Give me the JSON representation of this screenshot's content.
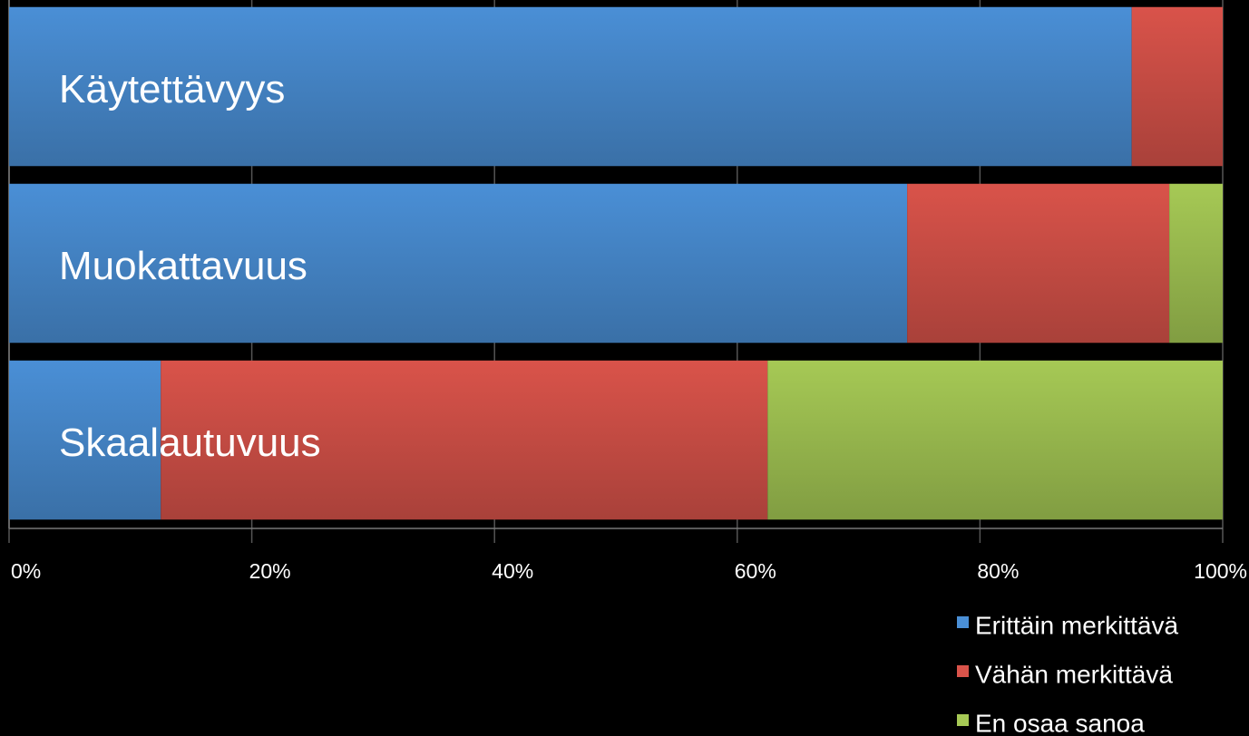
{
  "chart_data": {
    "type": "stacked-bar-horizontal",
    "categories": [
      "Käytettävyys",
      "Muokattavuus",
      "Skaalautuvuus"
    ],
    "series": [
      {
        "name": "Erittäin merkittävä",
        "color": "#4a8fd6",
        "values": [
          92.5,
          74,
          12.5
        ]
      },
      {
        "name": "Vähän merkittävä",
        "color": "#d9534a",
        "values": [
          7.5,
          21.6,
          50
        ]
      },
      {
        "name": "En osaa sanoa",
        "color": "#a6c955",
        "values": [
          0,
          4.4,
          37.5
        ]
      }
    ],
    "xlim": [
      0,
      100
    ],
    "xticks": [
      {
        "value": 0,
        "label": "0%"
      },
      {
        "value": 20,
        "label": "20%"
      },
      {
        "value": 40,
        "label": "40%"
      },
      {
        "value": 60,
        "label": "60%"
      },
      {
        "value": 80,
        "label": "80%"
      },
      {
        "value": 100,
        "label": "100%"
      }
    ],
    "grid": true,
    "legend": "bottom-right"
  }
}
